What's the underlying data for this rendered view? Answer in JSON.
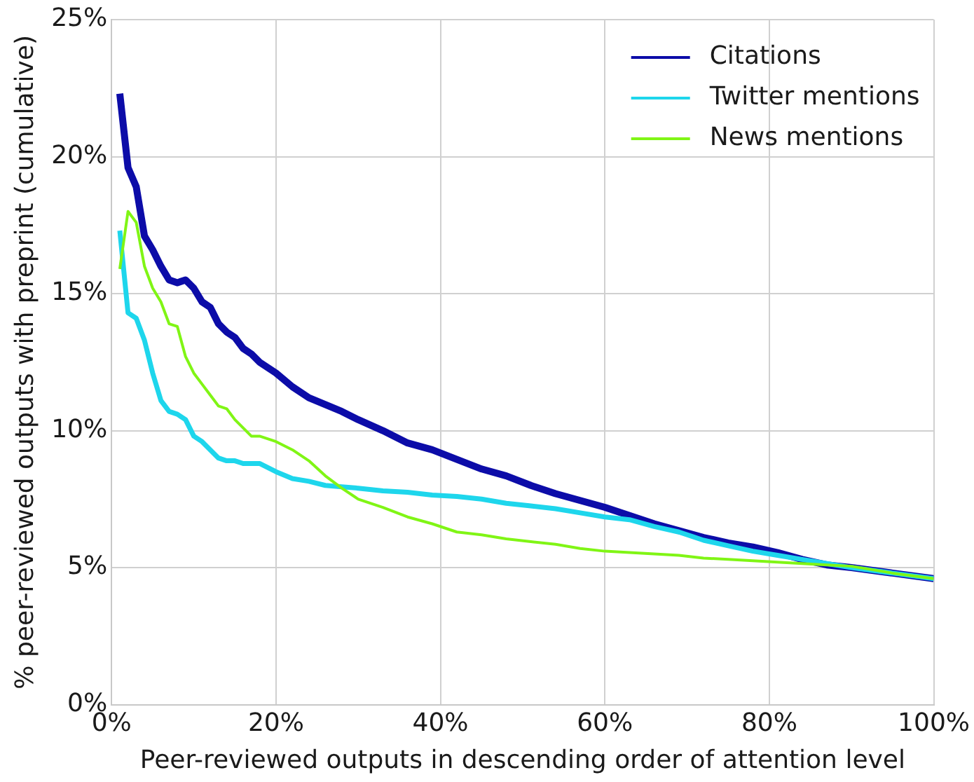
{
  "chart_data": {
    "type": "line",
    "xlabel": "Peer-reviewed outputs in descending order of attention level",
    "ylabel": "% peer-reviewed outputs with preprint (cumulative)",
    "x": [
      1,
      2,
      3,
      4,
      5,
      6,
      7,
      8,
      9,
      10,
      11,
      12,
      13,
      14,
      15,
      16,
      17,
      18,
      20,
      22,
      24,
      26,
      28,
      30,
      33,
      36,
      39,
      42,
      45,
      48,
      51,
      54,
      57,
      60,
      63,
      66,
      69,
      72,
      75,
      78,
      81,
      84,
      87,
      90,
      95,
      100
    ],
    "series": [
      {
        "name": "Citations",
        "color": "#0c0ca8",
        "values": [
          22.3,
          19.6,
          18.9,
          17.1,
          16.6,
          16.0,
          15.5,
          15.4,
          15.5,
          15.2,
          14.7,
          14.5,
          13.9,
          13.6,
          13.4,
          13.0,
          12.8,
          12.5,
          12.1,
          11.6,
          11.2,
          10.95,
          10.7,
          10.4,
          10.0,
          9.55,
          9.3,
          8.95,
          8.6,
          8.35,
          8.0,
          7.7,
          7.45,
          7.2,
          6.9,
          6.6,
          6.35,
          6.1,
          5.9,
          5.75,
          5.55,
          5.3,
          5.1,
          5.0,
          4.8,
          4.6
        ]
      },
      {
        "name": "Twitter mentions",
        "color": "#1ed6ec",
        "values": [
          17.3,
          14.3,
          14.1,
          13.3,
          12.1,
          11.1,
          10.7,
          10.6,
          10.4,
          9.8,
          9.6,
          9.3,
          9.0,
          8.9,
          8.9,
          8.8,
          8.8,
          8.8,
          8.5,
          8.25,
          8.15,
          8.0,
          7.95,
          7.9,
          7.8,
          7.75,
          7.65,
          7.6,
          7.5,
          7.35,
          7.25,
          7.15,
          7.0,
          6.85,
          6.75,
          6.5,
          6.3,
          6.0,
          5.8,
          5.6,
          5.45,
          5.3,
          5.15,
          5.0,
          4.8,
          4.6
        ]
      },
      {
        "name": "News mentions",
        "color": "#80f515",
        "values": [
          15.9,
          18.0,
          17.6,
          16.0,
          15.2,
          14.7,
          13.9,
          13.8,
          12.7,
          12.1,
          11.7,
          11.3,
          10.9,
          10.8,
          10.4,
          10.1,
          9.8,
          9.8,
          9.6,
          9.3,
          8.9,
          8.35,
          7.9,
          7.5,
          7.2,
          6.85,
          6.6,
          6.3,
          6.2,
          6.05,
          5.95,
          5.85,
          5.7,
          5.6,
          5.55,
          5.5,
          5.45,
          5.35,
          5.3,
          5.25,
          5.2,
          5.15,
          5.1,
          5.05,
          4.8,
          4.6
        ]
      }
    ],
    "xlim": [
      0,
      100
    ],
    "xticks": [
      {
        "value": 0,
        "label": "0%"
      },
      {
        "value": 20,
        "label": "20%"
      },
      {
        "value": 40,
        "label": "40%"
      },
      {
        "value": 60,
        "label": "60%"
      },
      {
        "value": 80,
        "label": "80%"
      },
      {
        "value": 100,
        "label": "100%"
      }
    ],
    "ylim": [
      0,
      25
    ],
    "yticks": [
      {
        "value": 0,
        "label": "0%"
      },
      {
        "value": 5,
        "label": "5%"
      },
      {
        "value": 10,
        "label": "10%"
      },
      {
        "value": 15,
        "label": "15%"
      },
      {
        "value": 20,
        "label": "20%"
      },
      {
        "value": 25,
        "label": "25%"
      }
    ],
    "grid": true,
    "legend": "top right"
  }
}
